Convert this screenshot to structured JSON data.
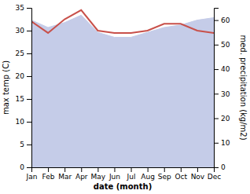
{
  "chart_data": {
    "type": "line",
    "categories": [
      "Jan",
      "Feb",
      "Mar",
      "Apr",
      "May",
      "Jun",
      "Jul",
      "Aug",
      "Sep",
      "Oct",
      "Nov",
      "Dec"
    ],
    "xlabel": "date (month)",
    "ylabel": "max temp (C)",
    "y2label": "med. precipitation (kg/m2)",
    "ylim": [
      0,
      35
    ],
    "yticks": [
      0,
      5,
      10,
      15,
      20,
      25,
      30,
      35
    ],
    "y2lim": [
      0,
      65
    ],
    "y2ticks": [
      0,
      10,
      20,
      30,
      40,
      50,
      60
    ],
    "series": [
      {
        "type": "area",
        "axis": "y2",
        "color": "#c5cce8",
        "values": [
          60,
          57,
          59,
          62,
          55,
          53,
          53,
          55,
          57,
          58,
          60,
          61
        ]
      },
      {
        "type": "line",
        "color": "#c8504a",
        "values": [
          32.0,
          29.5,
          32.5,
          34.5,
          30.0,
          29.5,
          29.5,
          30.0,
          31.5,
          31.5,
          30.0,
          29.5
        ]
      }
    ]
  }
}
